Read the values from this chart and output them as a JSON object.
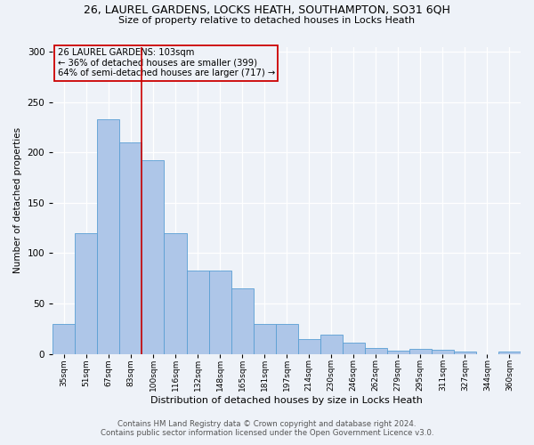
{
  "title_line1": "26, LAUREL GARDENS, LOCKS HEATH, SOUTHAMPTON, SO31 6QH",
  "title_line2": "Size of property relative to detached houses in Locks Heath",
  "xlabel": "Distribution of detached houses by size in Locks Heath",
  "ylabel": "Number of detached properties",
  "footer_line1": "Contains HM Land Registry data © Crown copyright and database right 2024.",
  "footer_line2": "Contains public sector information licensed under the Open Government Licence v3.0.",
  "bin_labels": [
    "35sqm",
    "51sqm",
    "67sqm",
    "83sqm",
    "100sqm",
    "116sqm",
    "132sqm",
    "148sqm",
    "165sqm",
    "181sqm",
    "197sqm",
    "214sqm",
    "230sqm",
    "246sqm",
    "262sqm",
    "279sqm",
    "295sqm",
    "311sqm",
    "327sqm",
    "344sqm",
    "360sqm"
  ],
  "bar_heights": [
    30,
    120,
    233,
    210,
    192,
    120,
    83,
    83,
    65,
    30,
    30,
    15,
    19,
    11,
    6,
    3,
    5,
    4,
    2,
    0,
    2
  ],
  "bar_color": "#aec6e8",
  "bar_edge_color": "#5a9fd4",
  "property_label": "26 LAUREL GARDENS: 103sqm",
  "pct_smaller": 36,
  "n_smaller": 399,
  "pct_larger": 64,
  "n_larger": 717,
  "vline_color": "#cc0000",
  "box_edge_color": "#cc0000",
  "ylim": [
    0,
    305
  ],
  "vline_x": 3.5,
  "background_color": "#eef2f8"
}
